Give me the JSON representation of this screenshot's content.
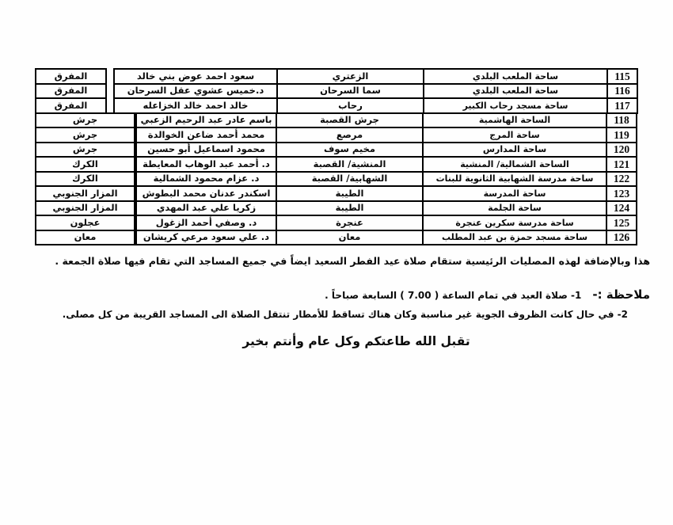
{
  "table": {
    "rows": [
      {
        "num": "115",
        "location": "ساحة الملعب البلدي",
        "area": "الزعتري",
        "imam": "سعود احمد عوض بني خالد",
        "governorate": "المفرق"
      },
      {
        "num": "116",
        "location": "ساحة الملعب البلدي",
        "area": "سما السرحان",
        "imam": "د.خميس عشوي عقل السرحان",
        "governorate": "المفرق"
      },
      {
        "num": "117",
        "location": "ساحة مسجد رحاب الكبير",
        "area": "رحاب",
        "imam": "خالد احمد خالد الخزاعله",
        "governorate": "المفرق"
      },
      {
        "num": "118",
        "location": "الساحة الهاشمية",
        "area": "جرش القصبة",
        "imam": "باسم عادر عبد الرحيم الزعبي",
        "governorate": "جرش"
      },
      {
        "num": "119",
        "location": "ساحة المرج",
        "area": "مرصع",
        "imam": "محمد أحمد ضاعن الخوالدة",
        "governorate": "جرش"
      },
      {
        "num": "120",
        "location": "ساحة المدارس",
        "area": "مخيم سوف",
        "imam": "محمود اسماعيل أبو حسين",
        "governorate": "جرش"
      },
      {
        "num": "121",
        "location": "الساحة الشمالية/ المنشية",
        "area": "المنشية/ القصبة",
        "imam": "د. أحمد عبد الوهاب المعايطة",
        "governorate": "الكرك"
      },
      {
        "num": "122",
        "location": "ساحة مدرسة الشهابية الثانوية للبنات",
        "area": "الشهابية/ القصبة",
        "imam": "د. عزام محمود الشمالية",
        "governorate": "الكرك"
      },
      {
        "num": "123",
        "location": "ساحة المدرسة",
        "area": "الطيبة",
        "imam": "اسكندر عدنان محمد البطوش",
        "governorate": "المزار الجنوبي"
      },
      {
        "num": "124",
        "location": "ساحة الجلمة",
        "area": "الطيبة",
        "imam": "زكريا علي عبد المهدي",
        "governorate": "المزار الجنوبي"
      },
      {
        "num": "125",
        "location": "ساحة مدرسة سكرين عنجرة",
        "area": "عنجرة",
        "imam": "د. وصفي أحمد الزغول",
        "governorate": "عجلون"
      },
      {
        "num": "126",
        "location": "ساحة مسجد حمزة بن عبد المطلب",
        "area": "معان",
        "imam": "د. علي سعود مرعي كريشان",
        "governorate": "معان"
      }
    ]
  },
  "footer": {
    "addendum": "هذا وبالإضافة لهذه المصليات الرئيسية ستقام صلاة عيد الفطر السعيد ايضاً في جميع  المساجد التي تقام فيها صلاة الجمعة .",
    "note_label": "ملاحظة :-",
    "note_1": "1-  صلاة العيد في تمام الساعة ( 7.00 ) السابعة صباحاً .",
    "note_2": "2- في حال كانت الظروف الجوية غير مناسبة وكان هناك تساقط للأمطار تنتقل الصلاة الى المساجد القريبة من كل مصلى.",
    "closing": "تقبل الله طاعتكم وكل عام وأنتم بخير"
  }
}
